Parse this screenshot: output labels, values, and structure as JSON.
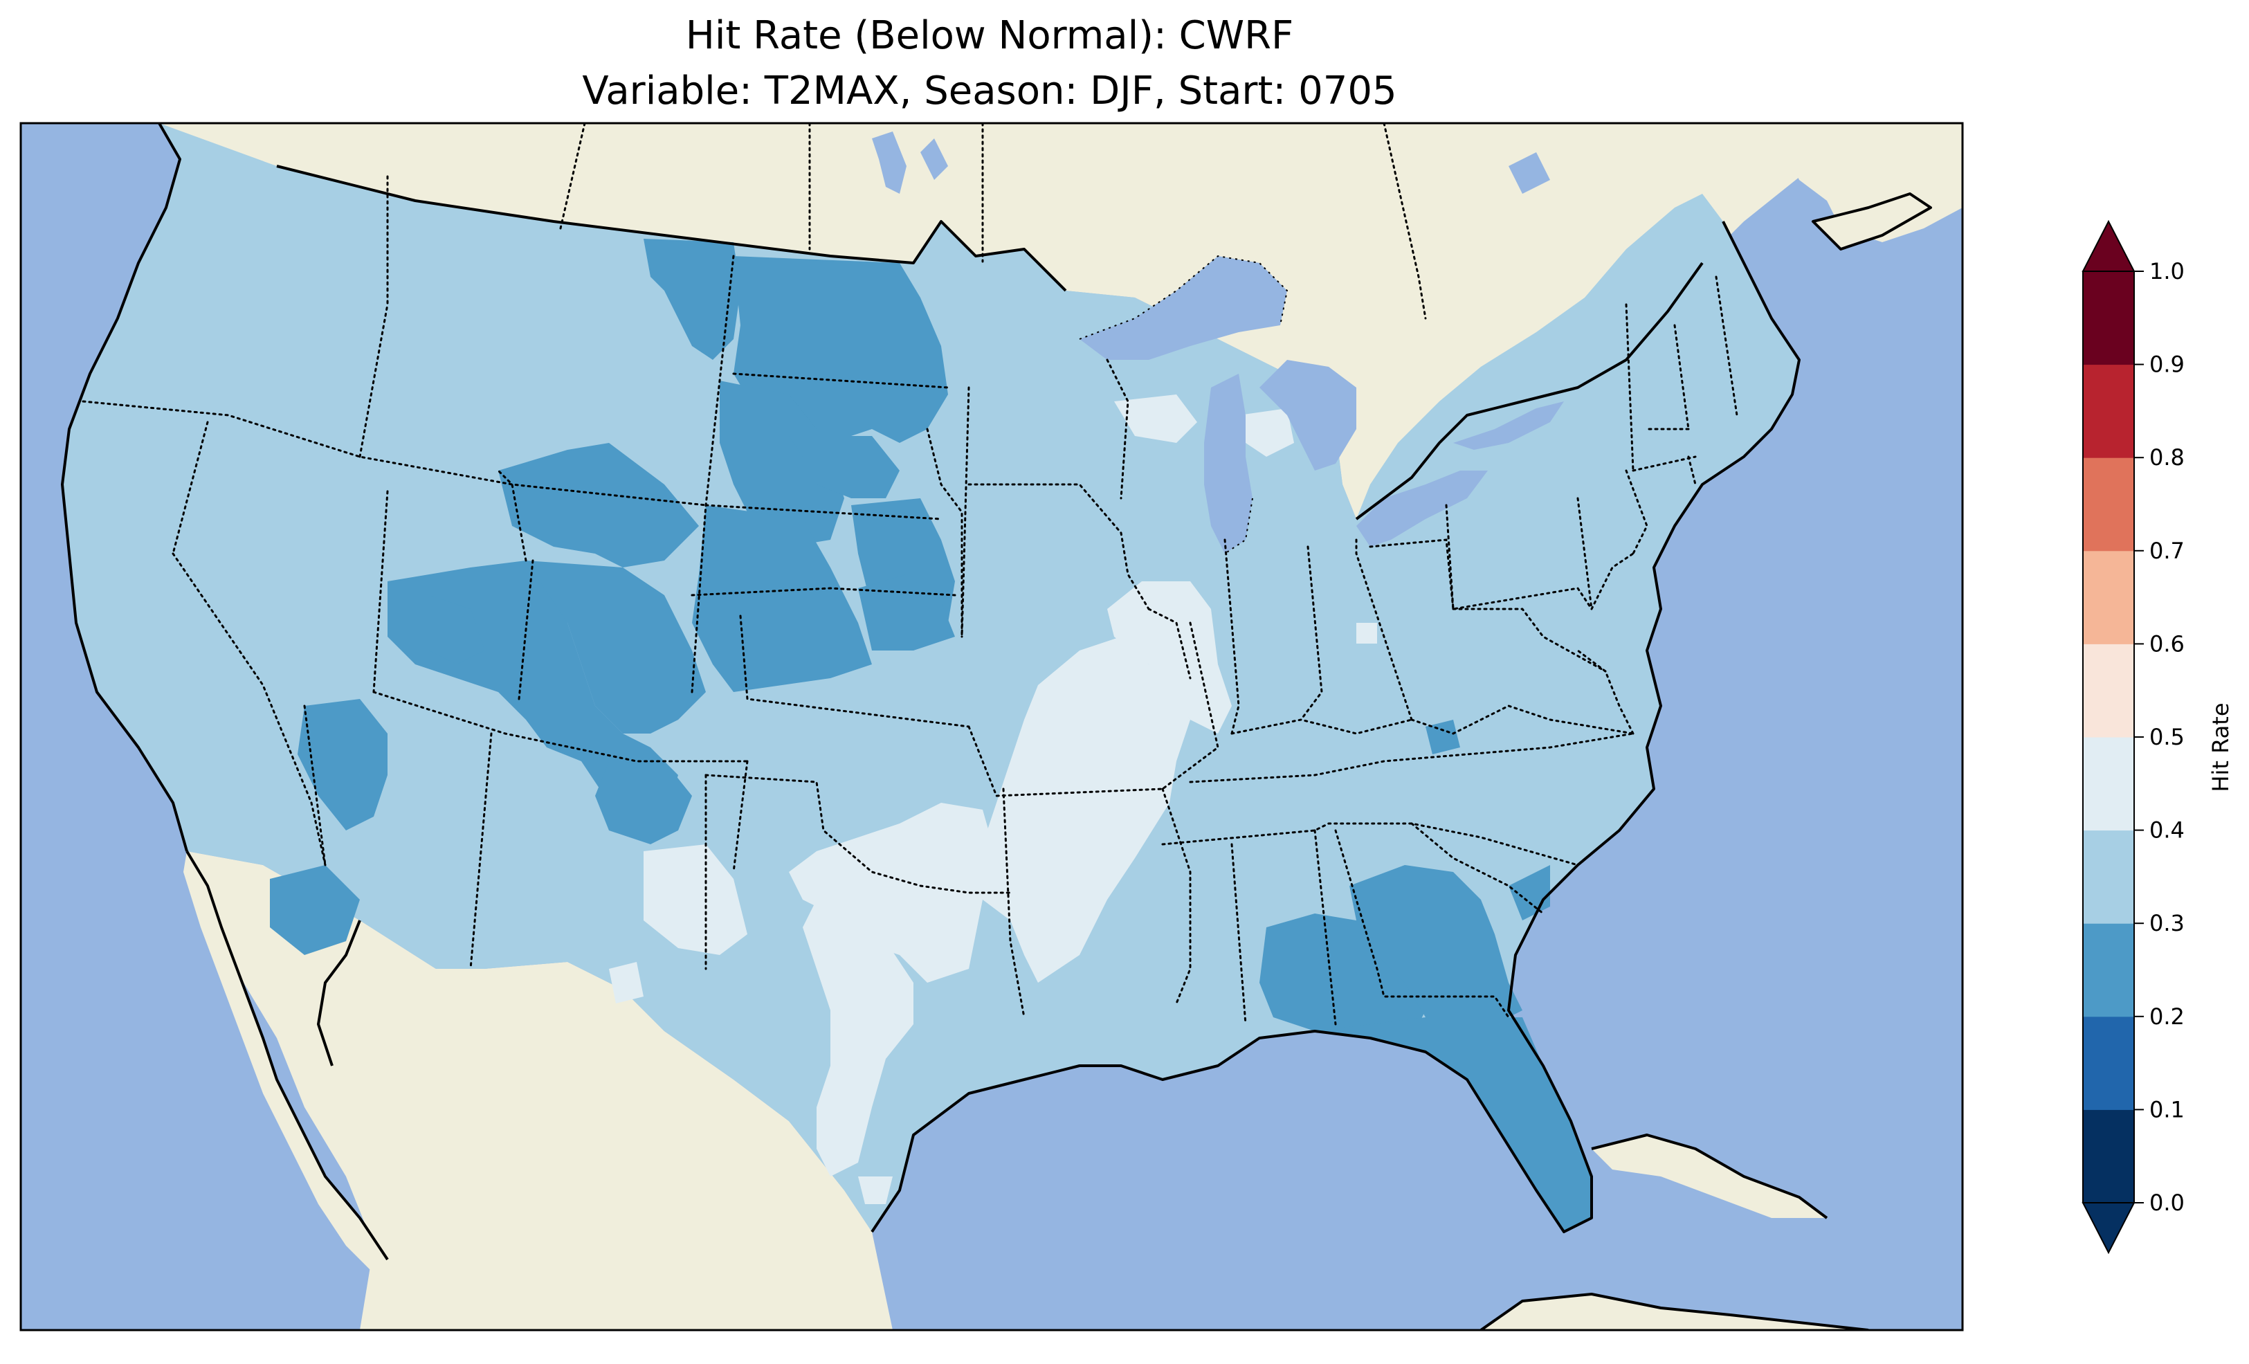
{
  "title": {
    "line1": "Hit Rate (Below Normal): CWRF",
    "line2": "Variable: T2MAX, Season: DJF, Start: 0705"
  },
  "colors": {
    "ocean": "#95b5e1",
    "land": "#f0eedc",
    "lakes": "#95b5e1",
    "outline": "#000000"
  },
  "colorbar": {
    "label": "Hit Rate",
    "ticks": [
      "0.0",
      "0.1",
      "0.2",
      "0.3",
      "0.4",
      "0.5",
      "0.6",
      "0.7",
      "0.8",
      "0.9",
      "1.0"
    ],
    "bins": [
      {
        "range": [
          0.0,
          0.1
        ],
        "color": "#053061"
      },
      {
        "range": [
          0.1,
          0.2
        ],
        "color": "#2166ac"
      },
      {
        "range": [
          0.2,
          0.3
        ],
        "color": "#4d9ac7"
      },
      {
        "range": [
          0.3,
          0.4
        ],
        "color": "#a7cfe4"
      },
      {
        "range": [
          0.4,
          0.5
        ],
        "color": "#e1edf3"
      },
      {
        "range": [
          0.5,
          0.6
        ],
        "color": "#f9e5da"
      },
      {
        "range": [
          0.6,
          0.7
        ],
        "color": "#f5b697"
      },
      {
        "range": [
          0.7,
          0.8
        ],
        "color": "#e0735b"
      },
      {
        "range": [
          0.8,
          0.9
        ],
        "color": "#b8232f"
      },
      {
        "range": [
          0.9,
          1.0
        ],
        "color": "#6a011f"
      }
    ],
    "extend": "both"
  }
}
